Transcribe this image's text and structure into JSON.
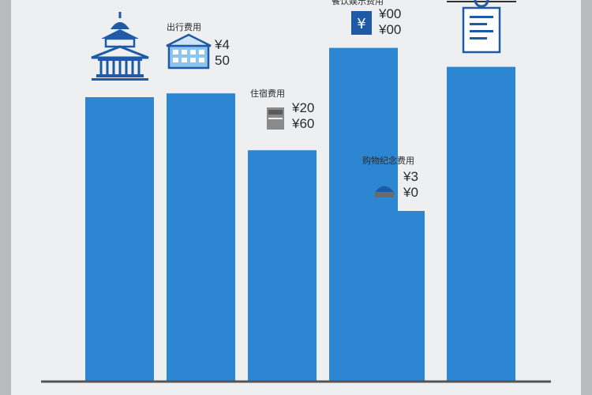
{
  "colors": {
    "bar": "#2d86d2",
    "icon": "#1e5aa6",
    "baseline": "#555555",
    "text": "#2b2b2b"
  },
  "chart_data": {
    "type": "bar",
    "title": "",
    "xlabel": "",
    "ylabel": "",
    "ylim": [
      0,
      100
    ],
    "grid": false,
    "legend": "none",
    "categories": [
      "",
      "",
      "",
      "",
      "",
      ""
    ],
    "values": [
      75,
      76,
      61,
      88,
      45,
      83
    ],
    "annotations": [
      {
        "bar": 0,
        "icon": "temple-icon",
        "label": "",
        "value_lines": []
      },
      {
        "bar": 1,
        "icon": "building-icon",
        "label": "出行费用",
        "value_lines": [
          "¥4",
          "50"
        ]
      },
      {
        "bar": 2,
        "icon": "bed-icon",
        "label": "住宿费用",
        "value_lines": [
          "¥20",
          "¥60"
        ]
      },
      {
        "bar": 3,
        "icon": "yen-icon",
        "label": "餐饮娱乐费用",
        "value_lines": [
          "¥00",
          "¥00"
        ]
      },
      {
        "bar": 4,
        "icon": "dining-icon",
        "label": "购物纪念费用",
        "value_lines": [
          "¥3",
          "¥0"
        ]
      },
      {
        "bar": 5,
        "icon": "receipt-icon",
        "label": "",
        "value_lines": []
      }
    ]
  }
}
